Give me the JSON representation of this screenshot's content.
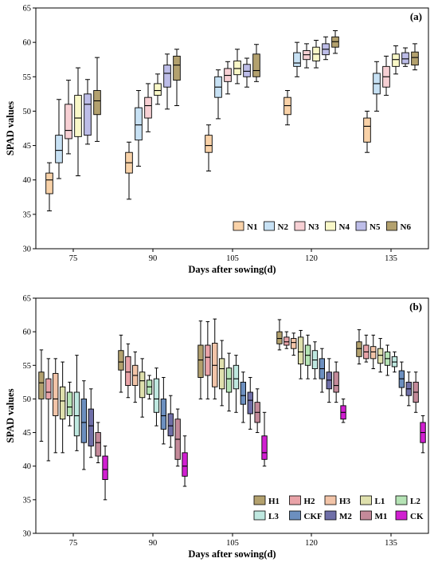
{
  "chart_data": [
    {
      "type": "box",
      "panel_label": "(a)",
      "xlabel": "Days after sowing(d)",
      "ylabel": "SPAD values",
      "ylim": [
        30,
        65
      ],
      "yticks": [
        30,
        35,
        40,
        45,
        50,
        55,
        60,
        65
      ],
      "categories": [
        "75",
        "90",
        "105",
        "120",
        "135"
      ],
      "legend_position": "bottom-right",
      "grid": false,
      "series": [
        {
          "name": "N1",
          "color": "#f9d2a8",
          "boxes": [
            {
              "min": 35.5,
              "q1": 38.0,
              "median": 40.0,
              "q3": 41.0,
              "max": 42.5
            },
            {
              "min": 37.2,
              "q1": 41.0,
              "median": 42.5,
              "q3": 44.0,
              "max": 45.5
            },
            {
              "min": 41.3,
              "q1": 44.0,
              "median": 45.0,
              "q3": 46.5,
              "max": 48.0
            },
            {
              "min": 48.0,
              "q1": 49.5,
              "median": 50.8,
              "q3": 52.0,
              "max": 53.0
            },
            {
              "min": 44.0,
              "q1": 45.5,
              "median": 47.8,
              "q3": 49.0,
              "max": 50.0
            }
          ]
        },
        {
          "name": "N2",
          "color": "#c7e1f4",
          "boxes": [
            {
              "min": 40.2,
              "q1": 42.5,
              "median": 44.3,
              "q3": 46.5,
              "max": 51.7
            },
            {
              "min": 42.0,
              "q1": 45.8,
              "median": 48.0,
              "q3": 50.5,
              "max": 53.0
            },
            {
              "min": 48.9,
              "q1": 52.0,
              "median": 53.5,
              "q3": 55.0,
              "max": 56.0
            },
            {
              "min": 55.0,
              "q1": 56.5,
              "median": 57.0,
              "q3": 58.5,
              "max": 60.0
            },
            {
              "min": 50.0,
              "q1": 52.5,
              "median": 54.0,
              "q3": 55.5,
              "max": 57.2
            }
          ]
        },
        {
          "name": "N3",
          "color": "#f7d0d4",
          "boxes": [
            {
              "min": 43.8,
              "q1": 46.0,
              "median": 47.2,
              "q3": 51.0,
              "max": 54.5
            },
            {
              "min": 47.0,
              "q1": 49.0,
              "median": 50.8,
              "q3": 52.0,
              "max": 54.0
            },
            {
              "min": 52.5,
              "q1": 54.3,
              "median": 55.2,
              "q3": 56.2,
              "max": 57.2
            },
            {
              "min": 56.3,
              "q1": 57.5,
              "median": 58.2,
              "q3": 58.8,
              "max": 59.8
            },
            {
              "min": 52.3,
              "q1": 53.5,
              "median": 55.0,
              "q3": 56.5,
              "max": 58.0
            }
          ]
        },
        {
          "name": "N4",
          "color": "#f9f8c8",
          "boxes": [
            {
              "min": 40.6,
              "q1": 46.3,
              "median": 49.0,
              "q3": 52.3,
              "max": 56.3
            },
            {
              "min": 51.0,
              "q1": 52.3,
              "median": 53.0,
              "q3": 54.0,
              "max": 55.4
            },
            {
              "min": 54.0,
              "q1": 55.3,
              "median": 56.2,
              "q3": 57.3,
              "max": 59.0
            },
            {
              "min": 56.3,
              "q1": 57.3,
              "median": 58.3,
              "q3": 59.3,
              "max": 60.3
            },
            {
              "min": 55.4,
              "q1": 56.5,
              "median": 57.5,
              "q3": 58.3,
              "max": 59.5
            }
          ]
        },
        {
          "name": "N5",
          "color": "#bdbde8",
          "boxes": [
            {
              "min": 45.2,
              "q1": 46.5,
              "median": 51.0,
              "q3": 52.5,
              "max": 54.6
            },
            {
              "min": 50.3,
              "q1": 53.5,
              "median": 55.5,
              "q3": 56.7,
              "max": 58.3
            },
            {
              "min": 53.5,
              "q1": 55.0,
              "median": 55.8,
              "q3": 56.8,
              "max": 57.7
            },
            {
              "min": 57.5,
              "q1": 58.2,
              "median": 59.0,
              "q3": 59.8,
              "max": 60.8
            },
            {
              "min": 56.5,
              "q1": 56.9,
              "median": 57.6,
              "q3": 58.5,
              "max": 59.2
            }
          ]
        },
        {
          "name": "N6",
          "color": "#b3a16e",
          "boxes": [
            {
              "min": 45.6,
              "q1": 49.5,
              "median": 51.5,
              "q3": 53.0,
              "max": 57.8
            },
            {
              "min": 50.8,
              "q1": 54.5,
              "median": 56.7,
              "q3": 58.0,
              "max": 59.0
            },
            {
              "min": 54.3,
              "q1": 55.0,
              "median": 55.9,
              "q3": 58.3,
              "max": 59.7
            },
            {
              "min": 58.4,
              "q1": 59.3,
              "median": 60.1,
              "q3": 60.8,
              "max": 61.7
            },
            {
              "min": 56.0,
              "q1": 56.7,
              "median": 57.8,
              "q3": 58.6,
              "max": 59.8
            }
          ]
        }
      ]
    },
    {
      "type": "box",
      "panel_label": "(b)",
      "xlabel": "Days after sowing(d)",
      "ylabel": "SPAD values",
      "ylim": [
        30,
        65
      ],
      "yticks": [
        30,
        35,
        40,
        45,
        50,
        55,
        60,
        65
      ],
      "categories": [
        "75",
        "90",
        "105",
        "120",
        "135"
      ],
      "legend_position": "bottom-right",
      "grid": false,
      "series": [
        {
          "name": "H1",
          "color": "#b3a16e",
          "boxes": [
            {
              "min": 43.7,
              "q1": 50.0,
              "median": 52.4,
              "q3": 54.0,
              "max": 57.3
            },
            {
              "min": 51.0,
              "q1": 54.3,
              "median": 55.5,
              "q3": 57.2,
              "max": 59.5
            },
            {
              "min": 50.0,
              "q1": 53.2,
              "median": 55.8,
              "q3": 58.0,
              "max": 61.6
            },
            {
              "min": 57.3,
              "q1": 58.2,
              "median": 59.0,
              "q3": 60.0,
              "max": 61.8
            },
            {
              "min": 55.2,
              "q1": 56.3,
              "median": 57.5,
              "q3": 58.5,
              "max": 60.3
            }
          ]
        },
        {
          "name": "H2",
          "color": "#e9a3a8",
          "boxes": [
            {
              "min": 40.8,
              "q1": 50.0,
              "median": 51.0,
              "q3": 53.0,
              "max": 56.0
            },
            {
              "min": 50.2,
              "q1": 52.0,
              "median": 54.0,
              "q3": 56.3,
              "max": 58.2
            },
            {
              "min": 50.0,
              "q1": 53.5,
              "median": 56.2,
              "q3": 58.0,
              "max": 61.5
            },
            {
              "min": 57.5,
              "q1": 58.0,
              "median": 58.5,
              "q3": 59.2,
              "max": 60.0
            },
            {
              "min": 55.5,
              "q1": 56.0,
              "median": 57.0,
              "q3": 58.0,
              "max": 59.5
            }
          ]
        },
        {
          "name": "H3",
          "color": "#f2c4a8",
          "boxes": [
            {
              "min": 42.0,
              "q1": 47.5,
              "median": 50.0,
              "q3": 53.8,
              "max": 56.0
            },
            {
              "min": 49.5,
              "q1": 52.0,
              "median": 53.5,
              "q3": 55.0,
              "max": 57.0
            },
            {
              "min": 50.0,
              "q1": 51.8,
              "median": 55.0,
              "q3": 58.3,
              "max": 61.9
            },
            {
              "min": 56.5,
              "q1": 57.5,
              "median": 58.4,
              "q3": 59.0,
              "max": 59.8
            },
            {
              "min": 54.5,
              "q1": 56.0,
              "median": 57.0,
              "q3": 57.8,
              "max": 59.5
            }
          ]
        },
        {
          "name": "L1",
          "color": "#dfe0ad",
          "boxes": [
            {
              "min": 42.0,
              "q1": 47.0,
              "median": 49.7,
              "q3": 51.8,
              "max": 55.5
            },
            {
              "min": 47.3,
              "q1": 50.2,
              "median": 52.7,
              "q3": 54.0,
              "max": 56.0
            },
            {
              "min": 49.0,
              "q1": 51.5,
              "median": 54.5,
              "q3": 56.0,
              "max": 58.7
            },
            {
              "min": 53.0,
              "q1": 55.2,
              "median": 57.0,
              "q3": 59.2,
              "max": 60.2
            },
            {
              "min": 54.0,
              "q1": 55.3,
              "median": 56.5,
              "q3": 57.5,
              "max": 59.0
            }
          ]
        },
        {
          "name": "L2",
          "color": "#b5e3b5",
          "boxes": [
            {
              "min": 46.0,
              "q1": 47.5,
              "median": 48.8,
              "q3": 51.0,
              "max": 52.5
            },
            {
              "min": 50.0,
              "q1": 50.7,
              "median": 51.8,
              "q3": 52.8,
              "max": 53.5
            },
            {
              "min": 48.2,
              "q1": 51.0,
              "median": 53.0,
              "q3": 54.6,
              "max": 56.8
            },
            {
              "min": 53.0,
              "q1": 55.0,
              "median": 56.5,
              "q3": 58.0,
              "max": 59.5
            },
            {
              "min": 53.5,
              "q1": 55.0,
              "median": 56.0,
              "q3": 57.0,
              "max": 58.0
            }
          ]
        },
        {
          "name": "L3",
          "color": "#bfe8e0",
          "boxes": [
            {
              "min": 42.3,
              "q1": 44.5,
              "median": 47.5,
              "q3": 51.0,
              "max": 56.5
            },
            {
              "min": 46.0,
              "q1": 48.0,
              "median": 50.0,
              "q3": 53.0,
              "max": 54.6
            },
            {
              "min": 48.0,
              "q1": 51.5,
              "median": 53.0,
              "q3": 55.0,
              "max": 56.5
            },
            {
              "min": 53.0,
              "q1": 54.5,
              "median": 55.8,
              "q3": 57.2,
              "max": 58.5
            },
            {
              "min": 54.0,
              "q1": 54.8,
              "median": 55.5,
              "q3": 56.3,
              "max": 57.0
            }
          ]
        },
        {
          "name": "CKF",
          "color": "#6c8fbf",
          "boxes": [
            {
              "min": 39.5,
              "q1": 43.5,
              "median": 46.5,
              "q3": 50.0,
              "max": 52.7
            },
            {
              "min": 43.3,
              "q1": 45.5,
              "median": 47.5,
              "q3": 50.0,
              "max": 53.2
            },
            {
              "min": 46.5,
              "q1": 49.2,
              "median": 50.5,
              "q3": 52.5,
              "max": 54.0
            },
            {
              "min": 51.0,
              "q1": 53.0,
              "median": 54.5,
              "q3": 56.0,
              "max": 57.5
            },
            {
              "min": 50.5,
              "q1": 51.7,
              "median": 53.0,
              "q3": 54.2,
              "max": 55.5
            }
          ]
        },
        {
          "name": "M2",
          "color": "#6f6fa8",
          "boxes": [
            {
              "min": 41.3,
              "q1": 43.0,
              "median": 46.0,
              "q3": 48.5,
              "max": 51.5
            },
            {
              "min": 42.8,
              "q1": 44.5,
              "median": 46.0,
              "q3": 47.8,
              "max": 50.5
            },
            {
              "min": 45.5,
              "q1": 47.8,
              "median": 49.8,
              "q3": 51.0,
              "max": 53.2
            },
            {
              "min": 49.5,
              "q1": 51.5,
              "median": 52.8,
              "q3": 54.0,
              "max": 56.0
            },
            {
              "min": 49.0,
              "q1": 50.5,
              "median": 51.5,
              "q3": 52.5,
              "max": 54.0
            }
          ]
        },
        {
          "name": "M1",
          "color": "#c48a9a",
          "boxes": [
            {
              "min": 40.5,
              "q1": 41.5,
              "median": 43.5,
              "q3": 45.0,
              "max": 46.5
            },
            {
              "min": 40.0,
              "q1": 41.0,
              "median": 44.0,
              "q3": 47.0,
              "max": 48.5
            },
            {
              "min": 45.0,
              "q1": 46.5,
              "median": 48.0,
              "q3": 49.5,
              "max": 51.5
            },
            {
              "min": 49.5,
              "q1": 51.0,
              "median": 52.0,
              "q3": 54.0,
              "max": 55.5
            },
            {
              "min": 48.0,
              "q1": 49.5,
              "median": 51.0,
              "q3": 52.5,
              "max": 54.0
            }
          ]
        },
        {
          "name": "CK",
          "color": "#d11fd1",
          "boxes": [
            {
              "min": 35.0,
              "q1": 38.0,
              "median": 39.5,
              "q3": 41.5,
              "max": 43.0
            },
            {
              "min": 37.0,
              "q1": 38.5,
              "median": 40.0,
              "q3": 42.0,
              "max": 44.5
            },
            {
              "min": 40.0,
              "q1": 41.0,
              "median": 42.0,
              "q3": 44.5,
              "max": 48.0
            },
            {
              "min": 46.5,
              "q1": 47.0,
              "median": 48.0,
              "q3": 49.0,
              "max": 50.0
            },
            {
              "min": 42.0,
              "q1": 43.5,
              "median": 45.0,
              "q3": 46.5,
              "max": 47.5
            }
          ]
        }
      ]
    }
  ]
}
